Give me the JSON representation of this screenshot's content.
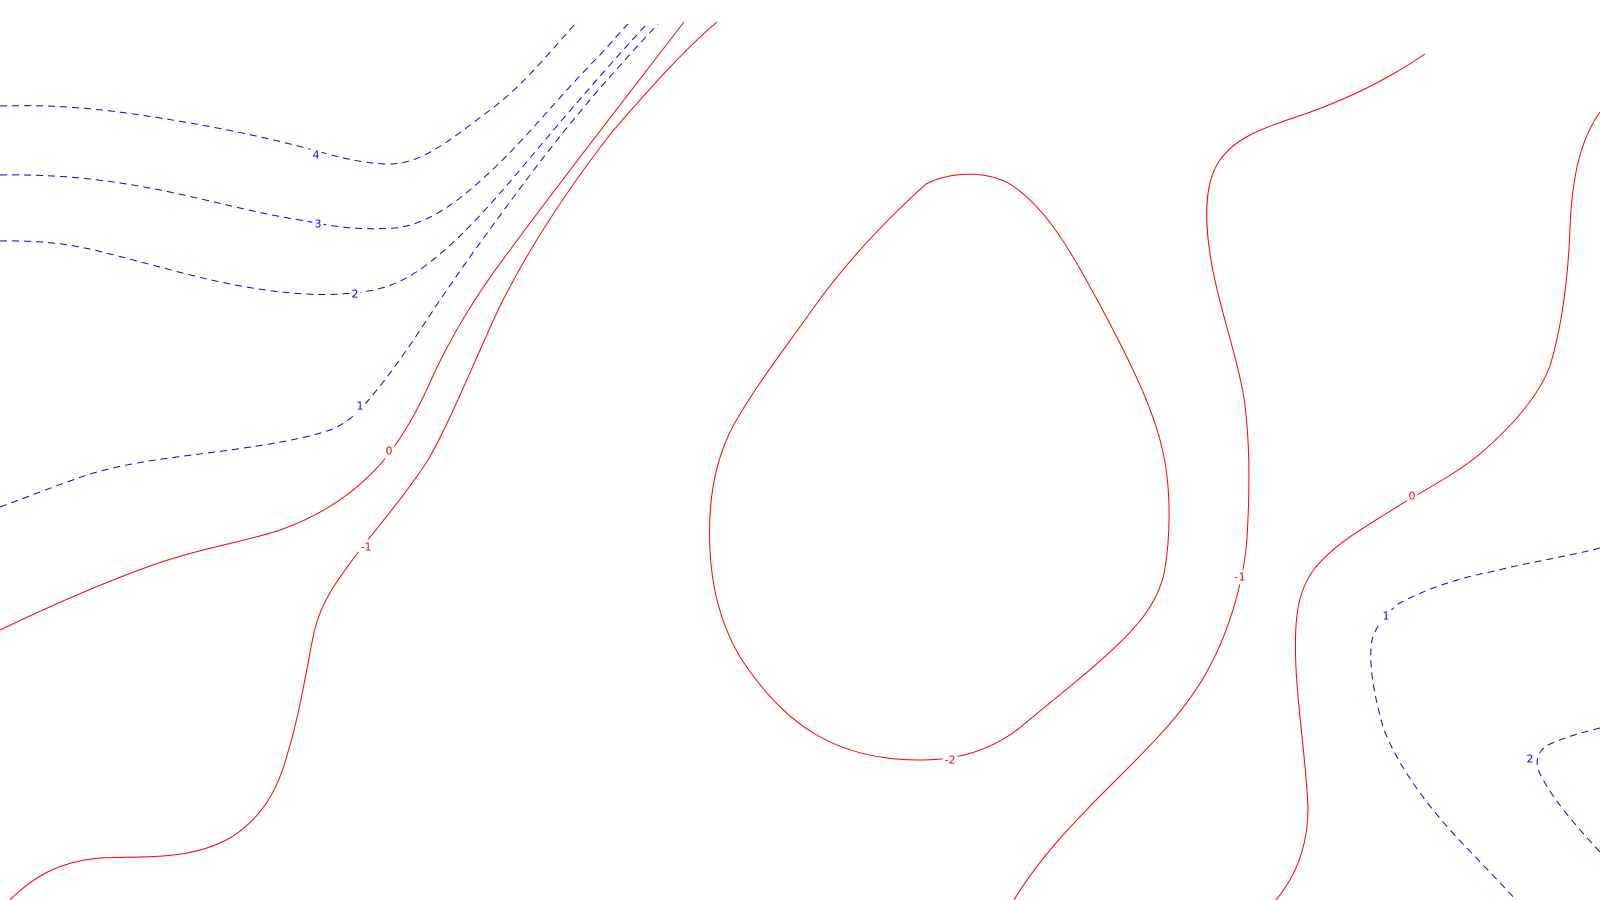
{
  "colors": {
    "background": "#ffffff",
    "positive": "#0000ff",
    "negative": "#ff0000"
  },
  "contours": [
    {
      "name": "contour-4",
      "level": "4",
      "label": "4",
      "sign": "positive"
    },
    {
      "name": "contour-3",
      "level": "3",
      "label": "3",
      "sign": "positive"
    },
    {
      "name": "contour-2-upper",
      "level": "2",
      "label": "2",
      "sign": "positive"
    },
    {
      "name": "contour-1-upper",
      "level": "1",
      "label": "1",
      "sign": "positive"
    },
    {
      "name": "contour-0-left",
      "level": "0",
      "label": "0",
      "sign": "zero"
    },
    {
      "name": "contour-neg1-left",
      "level": "-1",
      "label": "-1",
      "sign": "negative"
    },
    {
      "name": "contour-neg2",
      "level": "-2",
      "label": "-2",
      "sign": "negative"
    },
    {
      "name": "contour-neg1-right",
      "level": "-1",
      "label": "-1",
      "sign": "negative"
    },
    {
      "name": "contour-0-right",
      "level": "0",
      "label": "0",
      "sign": "zero"
    },
    {
      "name": "contour-1-lower",
      "level": "1",
      "label": "1",
      "sign": "positive"
    },
    {
      "name": "contour-2-lower",
      "level": "2",
      "label": "2",
      "sign": "positive"
    }
  ]
}
